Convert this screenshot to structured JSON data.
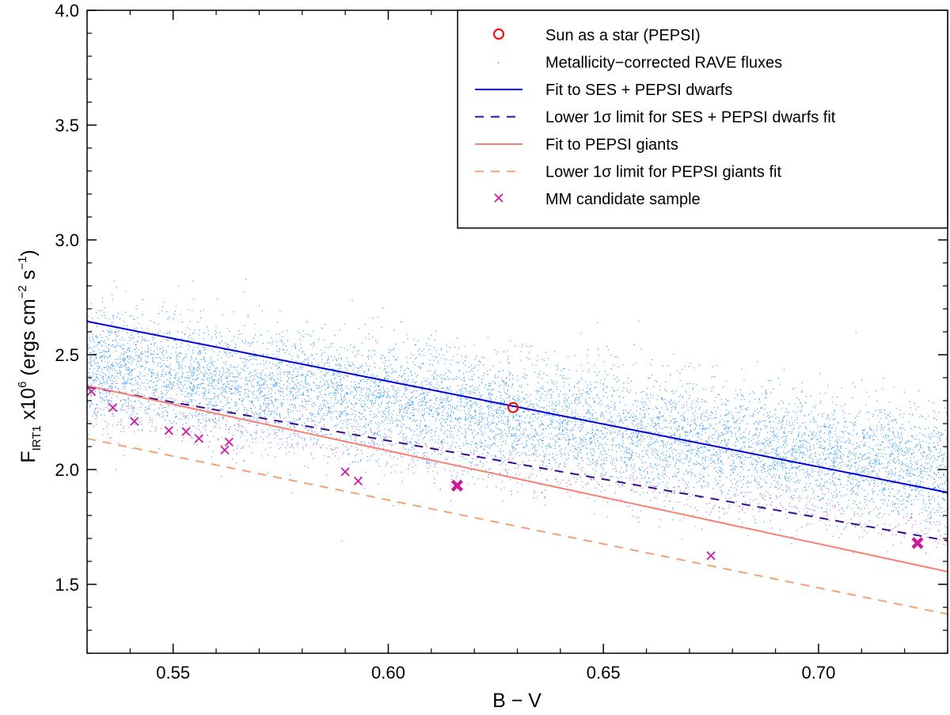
{
  "chart_data": {
    "type": "scatter",
    "xlabel": "B − V",
    "ylabel": {
      "main": "F",
      "subscript": "IRT1",
      "multiplier": " x10",
      "multiplier_exp": "6",
      "units_open": " (ergs cm",
      "units_exp1": "−2",
      "units_mid": " s",
      "units_exp2": "−1",
      "units_close": ")"
    },
    "xlim": [
      0.53,
      0.73
    ],
    "ylim": [
      1.2,
      4.0
    ],
    "xticks": [
      0.55,
      0.6,
      0.65,
      0.7
    ],
    "xtick_labels": [
      "0.55",
      "0.60",
      "0.65",
      "0.70"
    ],
    "yticks": [
      1.5,
      2.0,
      2.5,
      3.0,
      3.5,
      4.0
    ],
    "ytick_labels": [
      "1.5",
      "2.0",
      "2.5",
      "3.0",
      "3.5",
      "4.0"
    ],
    "legend_position": "top-right",
    "series": [
      {
        "name": "Sun as a star (PEPSI)",
        "kind": "point",
        "marker": "circle",
        "color": "#ff0000",
        "x": [
          0.629
        ],
        "y": [
          2.27
        ]
      },
      {
        "name": "Metallicity−corrected RAVE fluxes",
        "kind": "cloud",
        "color": "#1e90ff",
        "mean_line": [
          [
            0.53,
            2.45
          ],
          [
            0.73,
            1.99
          ]
        ],
        "spread": 0.13,
        "n_points": 9000
      },
      {
        "name": "Fit to SES + PEPSI dwarfs",
        "kind": "line",
        "color": "#0000dd",
        "dash": "solid",
        "points": [
          [
            0.53,
            2.645
          ],
          [
            0.73,
            1.9
          ]
        ]
      },
      {
        "name": "Lower 1σ limit for SES + PEPSI dwarfs fit",
        "kind": "line",
        "color": "#3a0a8c",
        "dash": "dashed",
        "points": [
          [
            0.53,
            2.36
          ],
          [
            0.73,
            1.69
          ]
        ]
      },
      {
        "name": "Fit to PEPSI giants",
        "kind": "line",
        "color": "#fa8072",
        "dash": "solid",
        "points": [
          [
            0.53,
            2.365
          ],
          [
            0.73,
            1.555
          ]
        ]
      },
      {
        "name": "Lower 1σ limit for PEPSI giants fit",
        "kind": "line",
        "color": "#f4a070",
        "dash": "dashed",
        "points": [
          [
            0.53,
            2.135
          ],
          [
            0.73,
            1.37
          ]
        ]
      },
      {
        "name": "MM candidate sample",
        "kind": "points",
        "marker": "x",
        "color": "#cc1a9e",
        "x": [
          0.531,
          0.536,
          0.541,
          0.549,
          0.553,
          0.556,
          0.562,
          0.563,
          0.59,
          0.593,
          0.675
        ],
        "y": [
          2.34,
          2.27,
          2.21,
          2.17,
          2.165,
          2.135,
          2.085,
          2.12,
          1.99,
          1.95,
          1.625
        ]
      },
      {
        "name": "MM candidates (bold)",
        "kind": "points",
        "marker": "X",
        "color": "#cc1a9e",
        "legend": false,
        "x": [
          0.616,
          0.723
        ],
        "y": [
          1.93,
          1.68
        ]
      },
      {
        "name": "Metal-poor RAVE subset",
        "kind": "cloud",
        "color": "#e040d0",
        "legend": false,
        "mean_line": [
          [
            0.53,
            2.27
          ],
          [
            0.73,
            1.74
          ]
        ],
        "spread": 0.05,
        "n_points": 500
      }
    ]
  }
}
